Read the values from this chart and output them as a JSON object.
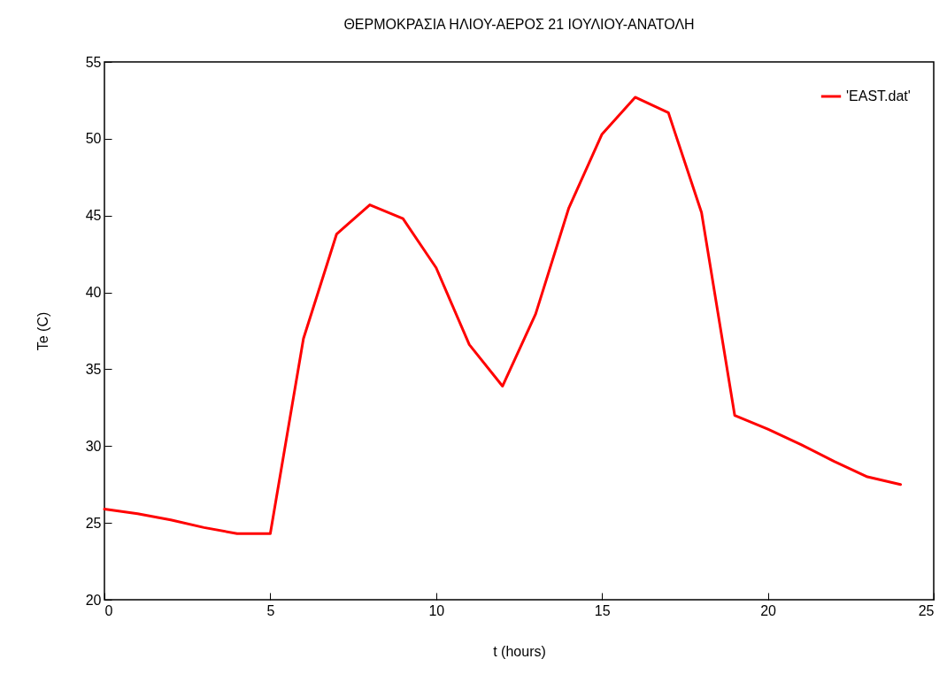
{
  "chart_data": {
    "type": "line",
    "title": "ΘΕΡΜΟΚΡΑΣΙΑ ΗΛΙΟΥ-ΑΕΡΟΣ 21 ΙΟΥΛΙΟΥ-ΑΝΑΤΟΛΗ",
    "xlabel": "t (hours)",
    "ylabel": "Te (C)",
    "x": [
      0,
      1,
      2,
      3,
      4,
      5,
      6,
      7,
      8,
      9,
      10,
      11,
      12,
      13,
      14,
      15,
      16,
      17,
      18,
      19,
      20,
      21,
      22,
      23,
      24
    ],
    "series": [
      {
        "name": "'EAST.dat'",
        "color": "#ff0000",
        "values": [
          25.9,
          25.6,
          25.2,
          24.7,
          24.3,
          24.3,
          37.0,
          43.8,
          45.7,
          44.8,
          41.6,
          36.6,
          33.9,
          38.6,
          45.5,
          50.3,
          52.7,
          51.7,
          45.2,
          32.0,
          31.1,
          30.1,
          29.0,
          28.0,
          27.5
        ]
      }
    ],
    "xlim": [
      0,
      25
    ],
    "xticks": [
      0,
      5,
      10,
      15,
      20,
      25
    ],
    "ylim": [
      20,
      55
    ],
    "yticks": [
      20,
      25,
      30,
      35,
      40,
      45,
      50,
      55
    ],
    "grid": false,
    "legend": "top right",
    "marker": "none",
    "line_style": "solid"
  }
}
